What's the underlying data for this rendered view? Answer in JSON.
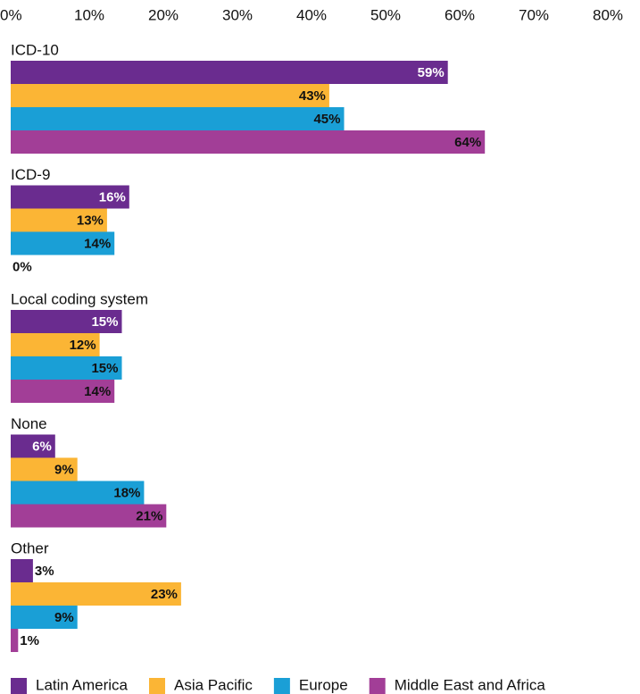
{
  "chart_data": {
    "type": "bar",
    "orientation": "horizontal",
    "legend": "bottom",
    "categories": [
      "ICD-10",
      "ICD-9",
      "Local coding system",
      "None",
      "Other"
    ],
    "series": [
      {
        "name": "Latin America",
        "color": "#6a2c8f",
        "values": [
          59,
          16,
          15,
          6,
          3
        ],
        "value_labels": [
          "59%",
          "16%",
          "15%",
          "6%",
          "3%"
        ]
      },
      {
        "name": "Asia Pacific",
        "color": "#fbb535",
        "values": [
          43,
          13,
          12,
          9,
          23
        ],
        "value_labels": [
          "43%",
          "13%",
          "12%",
          "9%",
          "23%"
        ]
      },
      {
        "name": "Europe",
        "color": "#1a9fd6",
        "values": [
          45,
          14,
          15,
          18,
          9
        ],
        "value_labels": [
          "45%",
          "14%",
          "15%",
          "18%",
          "9%"
        ]
      },
      {
        "name": "Middle East and Africa",
        "color": "#a23e97",
        "values": [
          64,
          0,
          14,
          21,
          1
        ],
        "value_labels": [
          "64%",
          "0%",
          "14%",
          "21%",
          "1%"
        ]
      }
    ],
    "xlim": [
      0,
      80
    ],
    "xticks": [
      {
        "value": 0,
        "label": "0%"
      },
      {
        "value": 10,
        "label": "10%"
      },
      {
        "value": 20,
        "label": "20%"
      },
      {
        "value": 30,
        "label": "30%"
      },
      {
        "value": 40,
        "label": "40%"
      },
      {
        "value": 50,
        "label": "50%"
      },
      {
        "value": 60,
        "label": "60%"
      },
      {
        "value": 70,
        "label": "70%"
      },
      {
        "value": 80,
        "label": "80%"
      }
    ]
  }
}
